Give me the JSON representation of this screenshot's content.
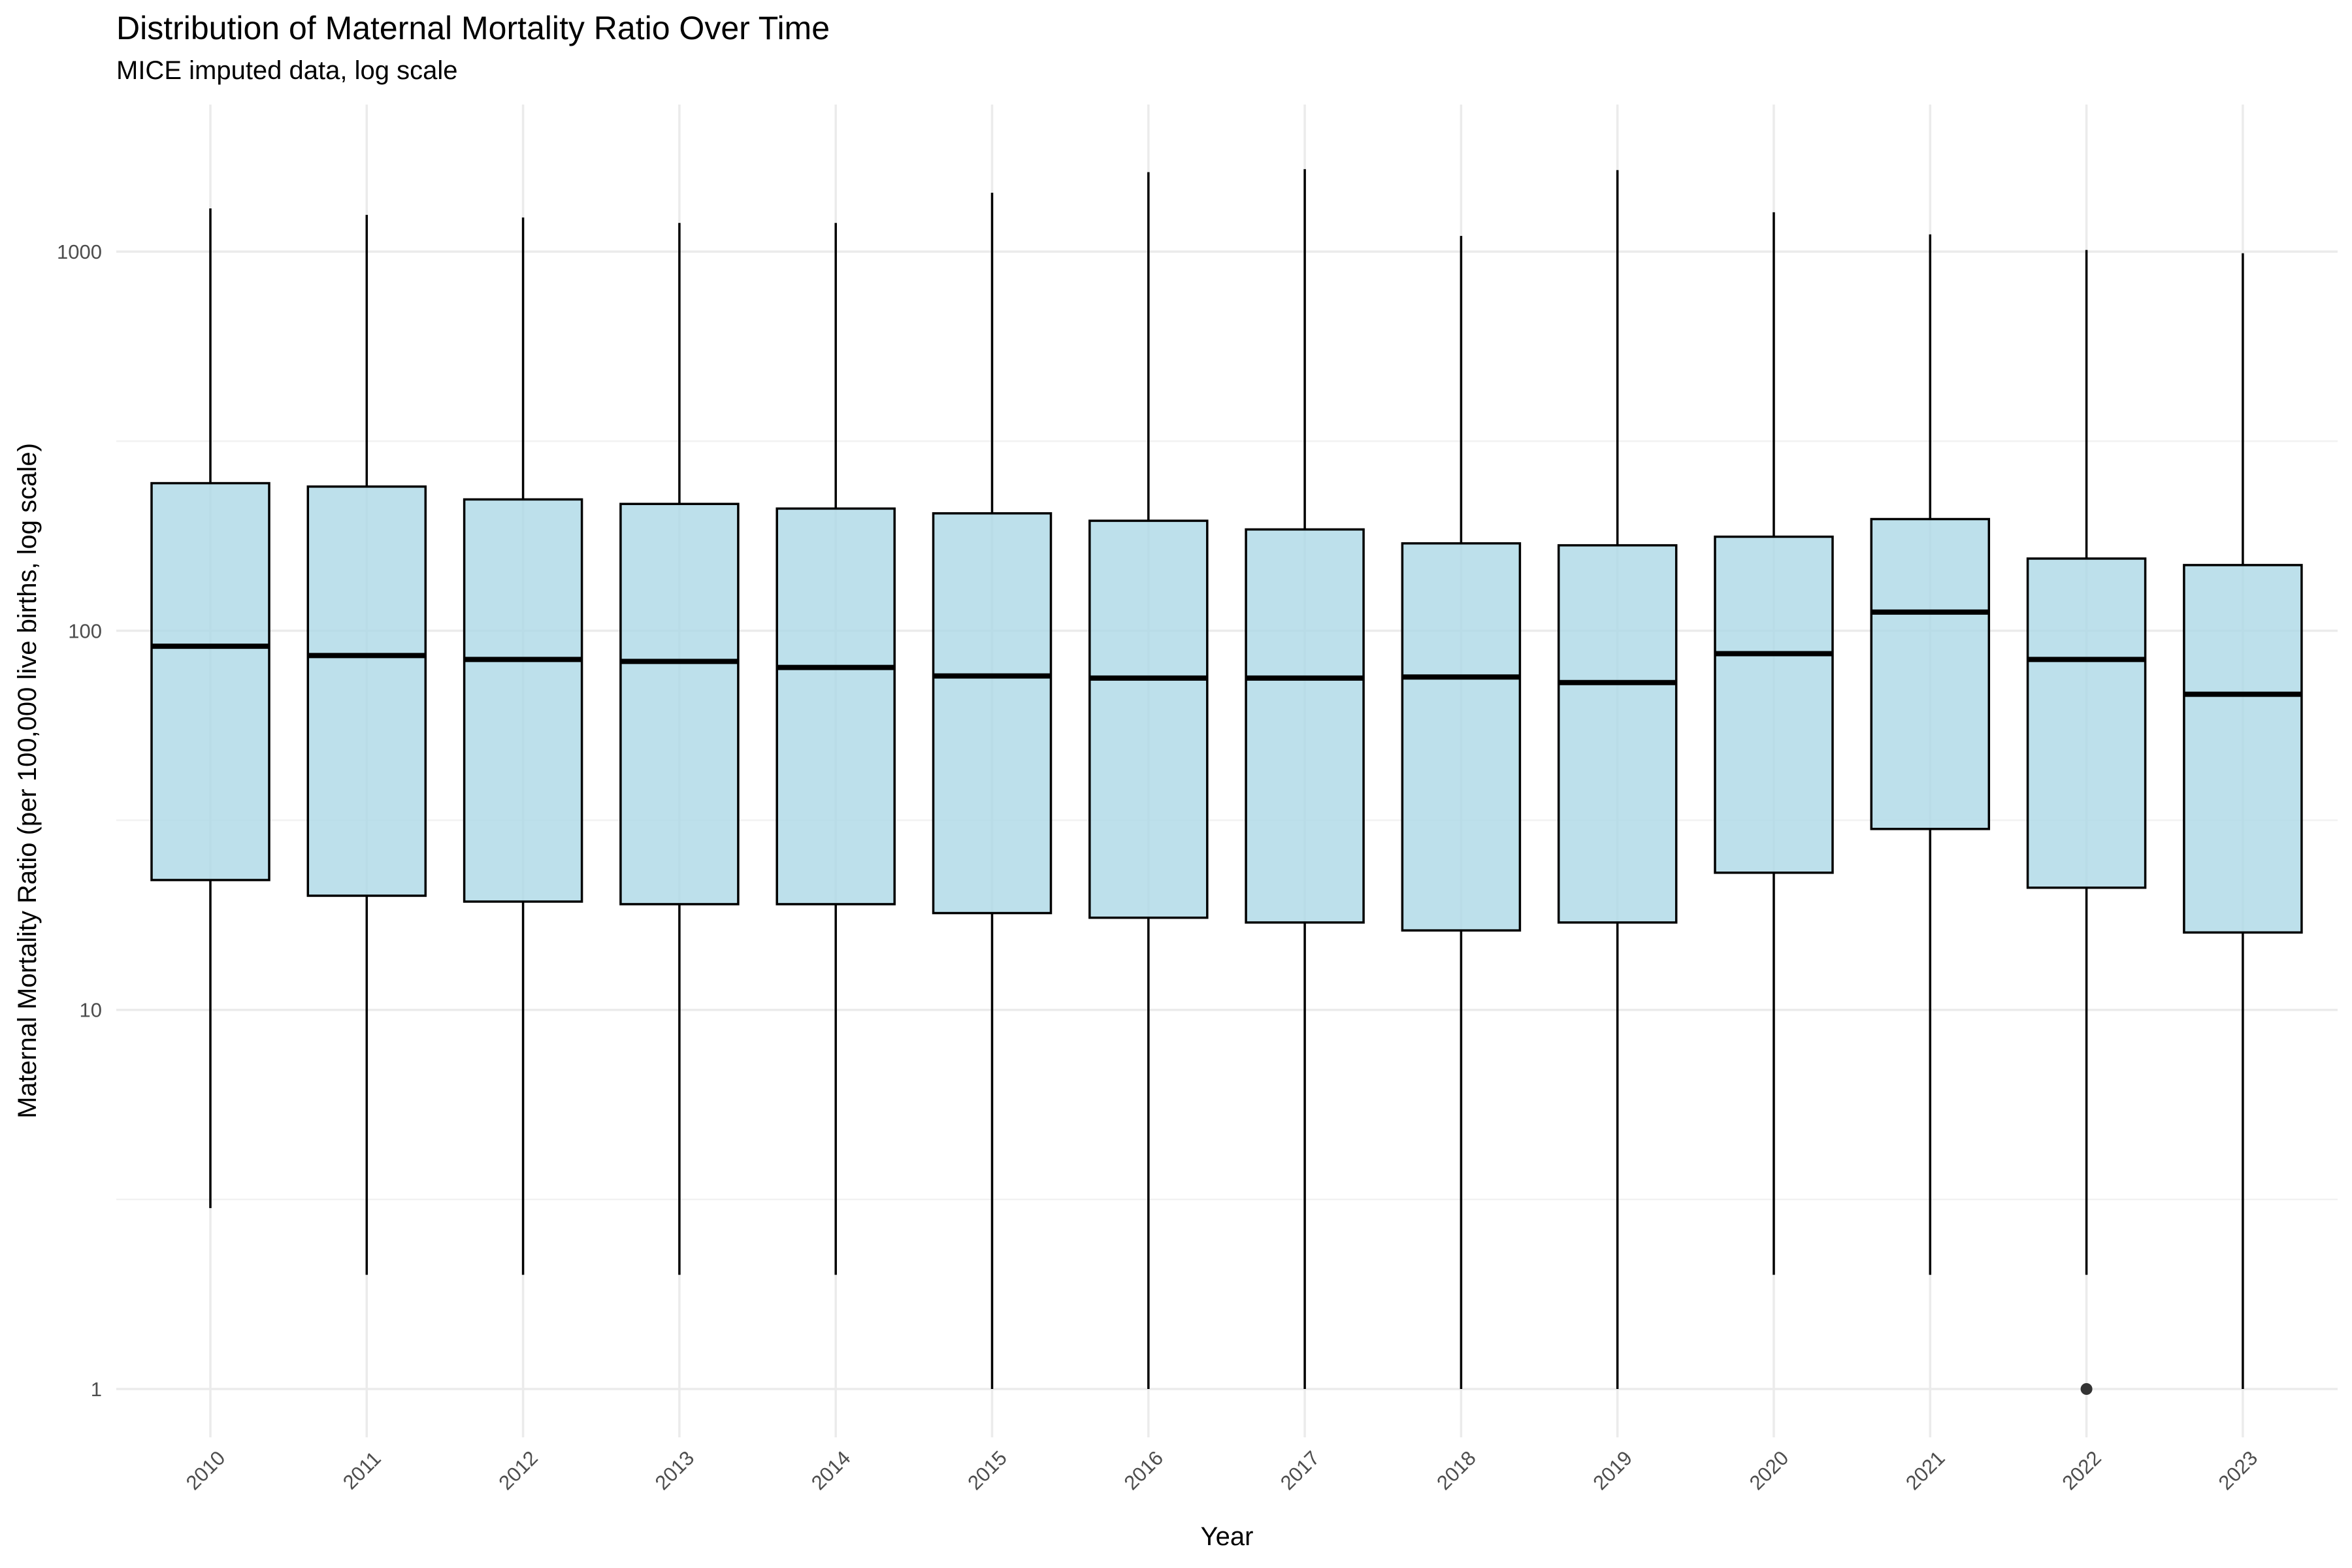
{
  "chart_data": {
    "type": "boxplot",
    "title": "Distribution of Maternal Mortality Ratio Over Time",
    "subtitle": "MICE imputed data, log scale",
    "xlabel": "Year",
    "ylabel": "Maternal Mortality Ratio (per 100,000 live births, log scale)",
    "y_scale": "log10",
    "ylim": [
      0.6,
      2400
    ],
    "y_ticks": [
      1,
      10,
      100,
      1000
    ],
    "y_tick_labels": [
      "1",
      "10",
      "100",
      "1000"
    ],
    "grid": true,
    "fill_color": "#add8e6",
    "categories": [
      "2010",
      "2011",
      "2012",
      "2013",
      "2014",
      "2015",
      "2016",
      "2017",
      "2018",
      "2019",
      "2020",
      "2021",
      "2022",
      "2023"
    ],
    "boxes": [
      {
        "x": "2010",
        "min": 3,
        "q1": 22,
        "median": 91,
        "q3": 245,
        "max": 1300
      },
      {
        "x": "2011",
        "min": 2,
        "q1": 20,
        "median": 86,
        "q3": 240,
        "max": 1250
      },
      {
        "x": "2012",
        "min": 2,
        "q1": 19.3,
        "median": 84,
        "q3": 222,
        "max": 1230
      },
      {
        "x": "2013",
        "min": 2,
        "q1": 19,
        "median": 83,
        "q3": 216,
        "max": 1190
      },
      {
        "x": "2014",
        "min": 2,
        "q1": 19,
        "median": 80,
        "q3": 210,
        "max": 1190
      },
      {
        "x": "2015",
        "min": 1,
        "q1": 18,
        "median": 76,
        "q3": 204,
        "max": 1430
      },
      {
        "x": "2016",
        "min": 1,
        "q1": 17.5,
        "median": 75,
        "q3": 195,
        "max": 1620
      },
      {
        "x": "2017",
        "min": 1,
        "q1": 17,
        "median": 75,
        "q3": 185,
        "max": 1650
      },
      {
        "x": "2018",
        "min": 1,
        "q1": 16.2,
        "median": 75.5,
        "q3": 170,
        "max": 1100
      },
      {
        "x": "2019",
        "min": 1,
        "q1": 17,
        "median": 73,
        "q3": 168,
        "max": 1640
      },
      {
        "x": "2020",
        "min": 2,
        "q1": 23,
        "median": 87,
        "q3": 177,
        "max": 1270
      },
      {
        "x": "2021",
        "min": 2,
        "q1": 30,
        "median": 112,
        "q3": 197,
        "max": 1110
      },
      {
        "x": "2022",
        "min": 2,
        "q1": 21,
        "median": 84,
        "q3": 155,
        "max": 1010,
        "outliers": [
          1
        ]
      },
      {
        "x": "2023",
        "min": 1,
        "q1": 16,
        "median": 68,
        "q3": 149,
        "max": 990
      }
    ]
  }
}
